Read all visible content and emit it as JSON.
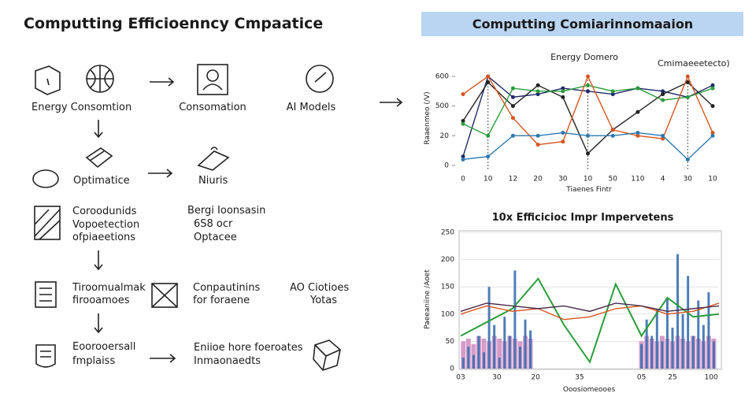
{
  "title": "Computting Efficioenncy Cmpaatice",
  "nodes": [
    {
      "lines": [
        "Energy Consomtion"
      ]
    },
    {
      "lines": [
        "Consomation"
      ]
    },
    {
      "lines": [
        "AI Models"
      ]
    },
    {
      "lines": [
        "Optimatice"
      ]
    },
    {
      "lines": [
        "Niuris"
      ]
    },
    {
      "lines": [
        "Coroodunids",
        "Vopoetection",
        "ofpiaeetions"
      ]
    },
    {
      "lines": [
        "Bergi Ioonsasin",
        "6S8 ocr",
        "Optacee"
      ]
    },
    {
      "lines": [
        "Tiroomualmak",
        "firooamoes"
      ]
    },
    {
      "lines": [
        "Conpautinins",
        "for foraene"
      ]
    },
    {
      "lines": [
        "AO Ciotioes",
        "Yotas"
      ]
    },
    {
      "lines": [
        "Eoorooersall",
        "fmplaiss"
      ]
    },
    {
      "lines": [
        "Eniioe hore foeroates",
        "Inmaonaedts"
      ]
    }
  ],
  "panel_title": "Computting Comiarinnomaaion",
  "charts": [
    {
      "type": "line",
      "title": "Energy Domero",
      "legend_title": "Cmimaeeetecto)",
      "ylabel": "Raaenmeo (/V)",
      "xlabel": "Tiaenes Fintr",
      "categories": [
        "0",
        "10",
        "12",
        "20",
        "30",
        "10",
        "50",
        "110",
        "4",
        "30",
        "10"
      ],
      "ylim": [
        0,
        3
      ],
      "yticks": [
        {
          "value": 0,
          "label": "0"
        },
        {
          "value": 1,
          "label": "20"
        },
        {
          "value": 2,
          "label": "500"
        },
        {
          "value": 3,
          "label": "600"
        }
      ],
      "series": [
        {
          "color": "#1f2a6b",
          "values": [
            0.3,
            3.0,
            2.3,
            2.4,
            2.6,
            2.5,
            2.4,
            2.6,
            2.5,
            2.3,
            2.7
          ]
        },
        {
          "color": "#222222",
          "values": [
            1.5,
            2.8,
            2.0,
            2.7,
            2.3,
            0.4,
            1.2,
            1.8,
            2.4,
            2.8,
            2.0
          ]
        },
        {
          "color": "#2a9d3a",
          "values": [
            1.4,
            1.0,
            2.6,
            2.5,
            2.5,
            2.7,
            2.5,
            2.6,
            2.2,
            2.3,
            2.6
          ]
        },
        {
          "color": "#d9541e",
          "values": [
            2.4,
            3.0,
            1.6,
            0.7,
            0.8,
            3.0,
            1.2,
            1.0,
            0.9,
            3.0,
            1.1
          ]
        },
        {
          "color": "#2a7ab0",
          "values": [
            0.2,
            0.3,
            1.0,
            1.0,
            1.1,
            1.0,
            1.0,
            1.1,
            1.0,
            0.2,
            1.0
          ]
        }
      ]
    },
    {
      "type": "bar_line",
      "title": "10x Efficicioc Impr Impervetens",
      "ylabel": "Paeeaniine /Aoet",
      "xlabel": "Ooosiomeooes",
      "xlim": [
        0,
        100
      ],
      "xticks": [
        {
          "value": 0,
          "label": "03"
        },
        {
          "value": 14,
          "label": "30"
        },
        {
          "value": 29,
          "label": "20"
        },
        {
          "value": 46,
          "label": "35"
        },
        {
          "value": 70,
          "label": "05"
        },
        {
          "value": 82,
          "label": "25"
        },
        {
          "value": 97,
          "label": "100"
        }
      ],
      "ylim": [
        0,
        250
      ],
      "yticks": [
        0,
        50,
        100,
        150,
        200,
        250
      ],
      "bar_x": [
        1,
        3,
        5,
        7,
        9,
        11,
        13,
        15,
        17,
        19,
        21,
        23,
        25,
        27,
        70,
        72,
        74,
        76,
        78,
        80,
        82,
        84,
        86,
        88,
        90,
        92,
        94,
        96,
        98
      ],
      "bars": [
        {
          "color": "#3a6fb0",
          "values": [
            20,
            40,
            25,
            60,
            30,
            150,
            80,
            20,
            95,
            60,
            180,
            40,
            90,
            70,
            45,
            90,
            60,
            110,
            50,
            130,
            75,
            210,
            100,
            170,
            60,
            125,
            80,
            140,
            50
          ]
        },
        {
          "color": "#c77bb8",
          "values": [
            50,
            55,
            45,
            60,
            55,
            50,
            60,
            55,
            50,
            60,
            55,
            50,
            60,
            55,
            50,
            60,
            55,
            50,
            60,
            55,
            50,
            60,
            55,
            50,
            60,
            55,
            50,
            60,
            55
          ]
        }
      ],
      "line_x": [
        0,
        10,
        20,
        30,
        40,
        50,
        60,
        70,
        80,
        90,
        100
      ],
      "lines": [
        {
          "color": "#2a9d3a",
          "values": [
            60,
            85,
            110,
            165,
            80,
            12,
            155,
            60,
            130,
            95,
            100
          ]
        },
        {
          "color": "#d9541e",
          "values": [
            100,
            115,
            105,
            110,
            90,
            95,
            110,
            115,
            100,
            105,
            120
          ]
        },
        {
          "color": "#4a2a4a",
          "values": [
            105,
            120,
            115,
            110,
            115,
            105,
            120,
            115,
            105,
            110,
            115
          ]
        }
      ]
    }
  ]
}
